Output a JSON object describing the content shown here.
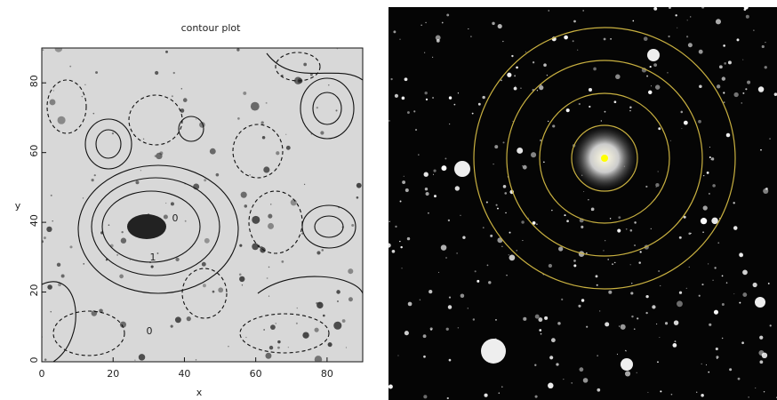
{
  "chart_data": {
    "type": "contour",
    "title": "contour plot",
    "x_label": "x",
    "y_label": "y",
    "xlim": [
      0,
      90
    ],
    "ylim": [
      0,
      90
    ],
    "xticks": [
      0,
      20,
      40,
      60,
      80
    ],
    "yticks": [
      0,
      20,
      40,
      60,
      80
    ],
    "annotations": [
      "0",
      "1",
      "0"
    ]
  }
}
